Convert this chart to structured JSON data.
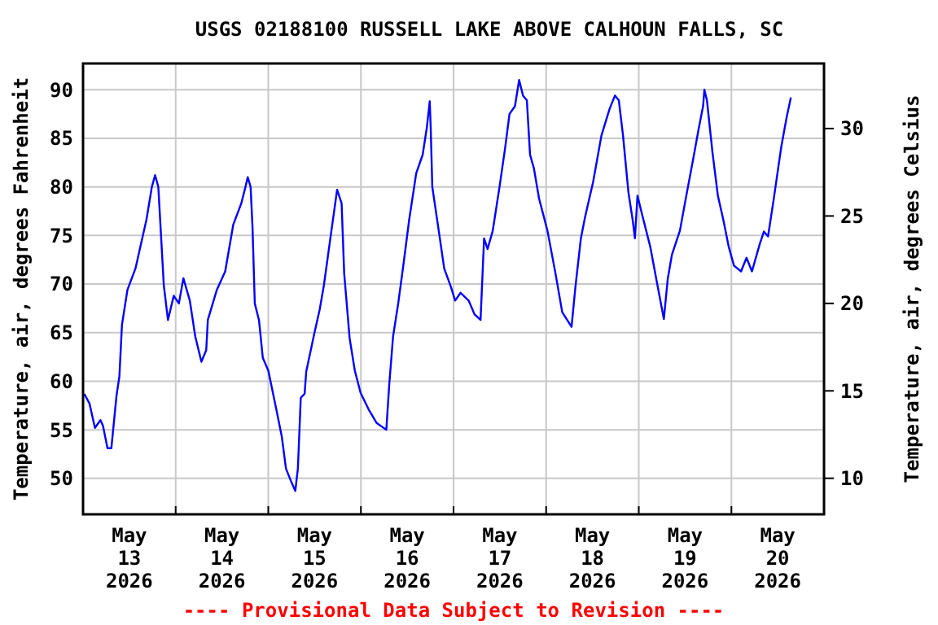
{
  "chart_data": {
    "type": "line",
    "title": "USGS 02188100 RUSSELL LAKE ABOVE CALHOUN FALLS, SC",
    "ylabel": "Temperature, air, degrees Fahrenheit",
    "y2label": "Temperature, air, degrees Celsius",
    "annotations": [
      "---- Provisional Data Subject to Revision ----"
    ],
    "x": [
      "2026-05-13T00:20",
      "2026-05-13T01:40",
      "2026-05-13T03:05",
      "2026-05-13T04:30",
      "2026-05-13T05:10",
      "2026-05-13T06:20",
      "2026-05-13T07:20",
      "2026-05-13T08:40",
      "2026-05-13T09:25",
      "2026-05-13T10:05",
      "2026-05-13T11:30",
      "2026-05-13T13:35",
      "2026-05-13T15:00",
      "2026-05-13T16:25",
      "2026-05-13T17:50",
      "2026-05-13T18:40",
      "2026-05-13T19:30",
      "2026-05-13T20:20",
      "2026-05-13T20:55",
      "2026-05-13T22:00",
      "2026-05-13T23:30",
      "2026-05-14T00:50",
      "2026-05-14T02:00",
      "2026-05-14T03:40",
      "2026-05-14T05:05",
      "2026-05-14T06:40",
      "2026-05-14T07:55",
      "2026-05-14T08:20",
      "2026-05-14T10:40",
      "2026-05-14T12:50",
      "2026-05-14T14:55",
      "2026-05-14T17:00",
      "2026-05-14T18:05",
      "2026-05-14T18:40",
      "2026-05-14T19:25",
      "2026-05-14T19:55",
      "2026-05-14T20:30",
      "2026-05-14T21:35",
      "2026-05-14T22:35",
      "2026-05-15T00:00",
      "2026-05-15T02:05",
      "2026-05-15T03:30",
      "2026-05-15T04:35",
      "2026-05-15T06:00",
      "2026-05-15T07:00",
      "2026-05-15T07:40",
      "2026-05-15T08:25",
      "2026-05-15T09:25",
      "2026-05-15T09:50",
      "2026-05-15T11:55",
      "2026-05-15T13:20",
      "2026-05-15T14:25",
      "2026-05-15T16:05",
      "2026-05-15T17:50",
      "2026-05-15T18:35",
      "2026-05-15T19:00",
      "2026-05-15T19:40",
      "2026-05-15T21:05",
      "2026-05-15T22:25",
      "2026-05-15T23:55",
      "2026-05-16T02:00",
      "2026-05-16T04:05",
      "2026-05-16T06:35",
      "2026-05-16T07:20",
      "2026-05-16T08:20",
      "2026-05-16T09:40",
      "2026-05-16T11:05",
      "2026-05-16T12:30",
      "2026-05-16T14:20",
      "2026-05-16T16:00",
      "2026-05-16T17:05",
      "2026-05-16T17:50",
      "2026-05-16T18:05",
      "2026-05-16T18:30",
      "2026-05-16T20:10",
      "2026-05-16T21:35",
      "2026-05-16T23:20",
      "2026-05-17T00:25",
      "2026-05-17T01:50",
      "2026-05-17T03:55",
      "2026-05-17T05:25",
      "2026-05-17T07:00",
      "2026-05-17T07:55",
      "2026-05-17T08:50",
      "2026-05-17T10:10",
      "2026-05-17T11:55",
      "2026-05-17T13:20",
      "2026-05-17T14:30",
      "2026-05-17T15:55",
      "2026-05-17T17:00",
      "2026-05-17T18:00",
      "2026-05-17T19:00",
      "2026-05-17T19:50",
      "2026-05-17T20:50",
      "2026-05-17T22:10",
      "2026-05-18T00:20",
      "2026-05-18T02:25",
      "2026-05-18T04:10",
      "2026-05-18T06:35",
      "2026-05-18T07:35",
      "2026-05-18T09:00",
      "2026-05-18T10:05",
      "2026-05-18T12:10",
      "2026-05-18T14:20",
      "2026-05-18T16:25",
      "2026-05-18T17:50",
      "2026-05-18T18:50",
      "2026-05-18T19:55",
      "2026-05-18T21:20",
      "2026-05-18T22:25",
      "2026-05-18T23:00",
      "2026-05-18T23:40",
      "2026-05-19T00:50",
      "2026-05-19T03:00",
      "2026-05-19T04:50",
      "2026-05-19T06:30",
      "2026-05-19T07:30",
      "2026-05-19T08:35",
      "2026-05-19T10:40",
      "2026-05-19T12:05",
      "2026-05-19T14:10",
      "2026-05-19T15:35",
      "2026-05-19T16:40",
      "2026-05-19T17:00",
      "2026-05-19T17:40",
      "2026-05-19T19:05",
      "2026-05-19T20:30",
      "2026-05-19T21:55",
      "2026-05-19T23:20",
      "2026-05-20T00:40",
      "2026-05-20T02:30",
      "2026-05-20T03:55",
      "2026-05-20T05:20",
      "2026-05-20T07:20",
      "2026-05-20T08:25",
      "2026-05-20T09:30",
      "2026-05-20T10:55",
      "2026-05-20T12:55",
      "2026-05-20T14:20",
      "2026-05-20T15:25"
    ],
    "series": [
      {
        "color": "#0000ff",
        "values": [
          58.7,
          57.7,
          55.2,
          56.0,
          55.4,
          53.1,
          53.1,
          58.5,
          60.5,
          65.8,
          69.4,
          71.6,
          74.1,
          76.6,
          80.0,
          81.2,
          80.0,
          74.1,
          69.9,
          66.3,
          68.8,
          68.0,
          70.6,
          68.3,
          64.6,
          62.0,
          63.2,
          66.3,
          69.4,
          71.3,
          76.1,
          78.3,
          80.0,
          81.0,
          80.0,
          75.8,
          68.0,
          66.3,
          62.4,
          61.1,
          57.1,
          54.3,
          51.0,
          49.6,
          48.7,
          51.0,
          58.3,
          58.7,
          61.0,
          64.9,
          67.4,
          69.9,
          74.7,
          79.7,
          78.8,
          78.3,
          71.1,
          64.4,
          61.1,
          58.8,
          57.1,
          55.7,
          55.0,
          59.6,
          64.6,
          68.0,
          72.2,
          76.6,
          81.4,
          83.3,
          86.1,
          88.8,
          86.1,
          80.0,
          75.5,
          71.6,
          69.7,
          68.3,
          69.1,
          68.3,
          66.9,
          66.3,
          74.7,
          73.6,
          75.5,
          80.0,
          83.9,
          87.5,
          88.3,
          91.0,
          89.4,
          88.9,
          83.3,
          81.9,
          78.8,
          75.5,
          71.1,
          67.1,
          65.6,
          69.7,
          74.7,
          76.9,
          80.5,
          85.3,
          88.0,
          89.4,
          88.9,
          85.3,
          79.4,
          76.6,
          74.7,
          79.1,
          77.2,
          73.8,
          69.9,
          66.4,
          70.5,
          73.0,
          75.5,
          78.6,
          83.0,
          86.1,
          88.3,
          90.0,
          88.9,
          83.6,
          79.1,
          76.6,
          73.8,
          71.9,
          71.3,
          72.7,
          71.3,
          74.1,
          75.4,
          74.9,
          78.6,
          84.1,
          87.2,
          89.2
        ]
      }
    ],
    "xlim": [
      "2026-05-13T00:00",
      "2026-05-21T00:00"
    ],
    "xticks": [
      {
        "value": "2026-05-13T12:00",
        "label": "May\n13\n2026"
      },
      {
        "value": "2026-05-14T00:00",
        "label": null
      },
      {
        "value": "2026-05-14T12:00",
        "label": "May\n14\n2026"
      },
      {
        "value": "2026-05-15T00:00",
        "label": null
      },
      {
        "value": "2026-05-15T12:00",
        "label": "May\n15\n2026"
      },
      {
        "value": "2026-05-16T00:00",
        "label": null
      },
      {
        "value": "2026-05-16T12:00",
        "label": "May\n16\n2026"
      },
      {
        "value": "2026-05-17T00:00",
        "label": null
      },
      {
        "value": "2026-05-17T12:00",
        "label": "May\n17\n2026"
      },
      {
        "value": "2026-05-18T00:00",
        "label": null
      },
      {
        "value": "2026-05-18T12:00",
        "label": "May\n18\n2026"
      },
      {
        "value": "2026-05-19T00:00",
        "label": null
      },
      {
        "value": "2026-05-19T12:00",
        "label": "May\n19\n2026"
      },
      {
        "value": "2026-05-20T00:00",
        "label": null
      },
      {
        "value": "2026-05-20T12:00",
        "label": "May\n20\n2026"
      }
    ],
    "ylim": [
      46.3,
      92.7
    ],
    "yticks": [
      50,
      55,
      60,
      65,
      70,
      75,
      80,
      85,
      90
    ],
    "y2lim": [
      7.94,
      33.72
    ],
    "y2ticks": [
      10,
      15,
      20,
      25,
      30
    ],
    "grid": true,
    "line_style": "solid"
  }
}
